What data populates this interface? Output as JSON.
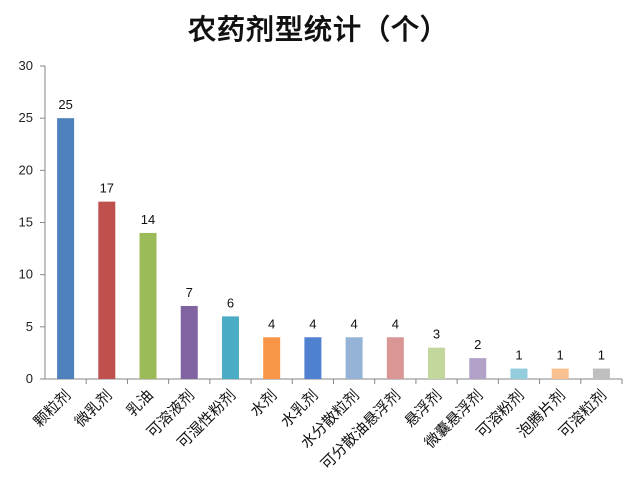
{
  "chart_data": {
    "type": "bar",
    "title": "农药剂型统计（个）",
    "categories": [
      "颗粒剂",
      "微乳剂",
      "乳油",
      "可溶液剂",
      "可湿性粉剂",
      "水剂",
      "水乳剂",
      "水分散粒剂",
      "可分散油悬浮剂",
      "悬浮剂",
      "微囊悬浮剂",
      "可溶粉剂",
      "泡腾片剂",
      "可溶粒剂"
    ],
    "values": [
      25,
      17,
      14,
      7,
      6,
      4,
      4,
      4,
      4,
      3,
      2,
      1,
      1,
      1
    ],
    "bar_colors": [
      "#4f81bd",
      "#c0504d",
      "#9bbb59",
      "#8064a2",
      "#4bacc6",
      "#f79646",
      "#4f81d0",
      "#95b3d7",
      "#d99694",
      "#c3d69b",
      "#b2a2c7",
      "#93cddd",
      "#fac090",
      "#bfbfbf"
    ],
    "ylim": [
      0,
      30
    ],
    "yticks": [
      0,
      5,
      10,
      15,
      20,
      25,
      30
    ],
    "xlabel": "",
    "ylabel": "",
    "grid": false,
    "legend": "none"
  }
}
